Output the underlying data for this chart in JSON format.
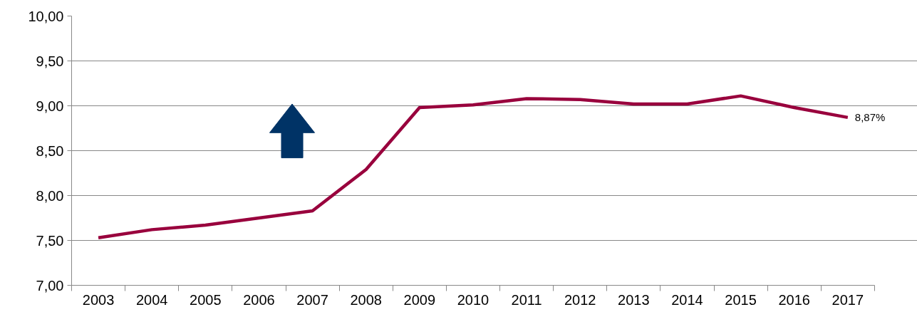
{
  "chart_data": {
    "type": "line",
    "categories": [
      "2003",
      "2004",
      "2005",
      "2006",
      "2007",
      "2008",
      "2009",
      "2010",
      "2011",
      "2012",
      "2013",
      "2014",
      "2015",
      "2016",
      "2017"
    ],
    "series": [
      {
        "color": "#99003d",
        "values": [
          7.53,
          7.62,
          7.67,
          7.75,
          7.83,
          8.29,
          8.98,
          9.01,
          9.08,
          9.07,
          9.02,
          9.02,
          9.11,
          8.98,
          8.87
        ]
      }
    ],
    "ylim": [
      7,
      10
    ],
    "yticks": [
      {
        "value": 7,
        "label": "7,00"
      },
      {
        "value": 7.5,
        "label": "7,50"
      },
      {
        "value": 8,
        "label": "8,00"
      },
      {
        "value": 8.5,
        "label": "8,50"
      },
      {
        "value": 9,
        "label": "9,00"
      },
      {
        "value": 9.5,
        "label": "9,50"
      },
      {
        "value": 10,
        "label": "10,00"
      }
    ],
    "grid": "y",
    "marker": "none",
    "line_style": "solid",
    "annotations": [
      {
        "text": "8,87%",
        "x": "2017",
        "y": 8.87
      }
    ]
  }
}
